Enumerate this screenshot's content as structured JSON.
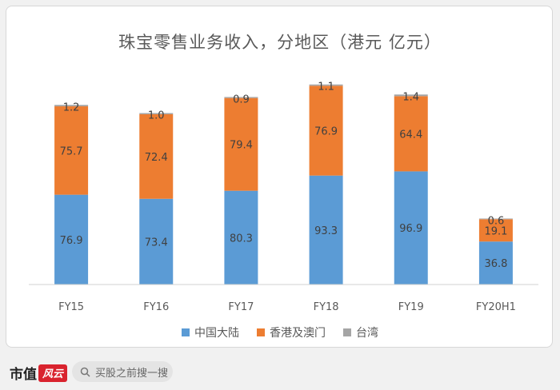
{
  "chart_data": {
    "type": "bar",
    "stacked": true,
    "title": "珠宝零售业务收入，分地区（港元 亿元）",
    "categories": [
      "FY15",
      "FY16",
      "FY17",
      "FY18",
      "FY19",
      "FY20H1"
    ],
    "series": [
      {
        "name": "中国大陆",
        "color": "#5b9bd5",
        "values": [
          76.9,
          73.4,
          80.3,
          93.3,
          96.9,
          36.8
        ],
        "labels": [
          "76.9",
          "73.4",
          "80.3",
          "93.3",
          "96.9",
          "36.8"
        ]
      },
      {
        "name": "香港及澳门",
        "color": "#ed7d31",
        "values": [
          75.7,
          72.4,
          79.4,
          76.9,
          64.4,
          19.1
        ],
        "labels": [
          "75.7",
          "72.4",
          "79.4",
          "76.9",
          "64.4",
          "19.1"
        ]
      },
      {
        "name": "台湾",
        "color": "#a5a5a5",
        "values": [
          1.2,
          1.0,
          0.9,
          1.1,
          1.4,
          0.6
        ],
        "labels": [
          "1.2",
          "1.0",
          "0.9",
          "1.1",
          "1.4",
          "0.6"
        ]
      }
    ],
    "ylim": [
      0,
      180
    ],
    "grid": false,
    "legend": "bottom"
  },
  "footer": {
    "brand": "市值",
    "brand_badge": "风云",
    "search_placeholder": "买股之前搜一搜"
  }
}
